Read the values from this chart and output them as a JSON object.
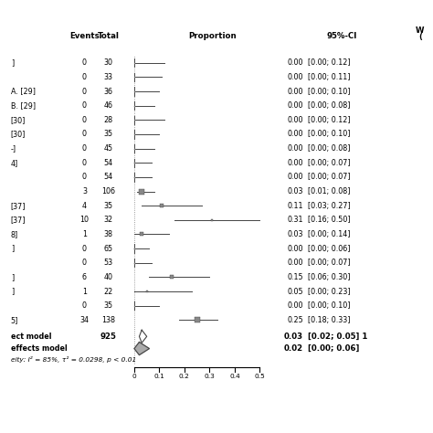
{
  "studies": [
    {
      "label": "]",
      "events": 0,
      "total": 30,
      "prop": 0.0,
      "ci_lo": 0.0,
      "ci_hi": 0.12
    },
    {
      "label": "",
      "events": 0,
      "total": 33,
      "prop": 0.0,
      "ci_lo": 0.0,
      "ci_hi": 0.11
    },
    {
      "label": "A. [29]",
      "events": 0,
      "total": 36,
      "prop": 0.0,
      "ci_lo": 0.0,
      "ci_hi": 0.1
    },
    {
      "label": "B. [29]",
      "events": 0,
      "total": 46,
      "prop": 0.0,
      "ci_lo": 0.0,
      "ci_hi": 0.08
    },
    {
      "label": "[30]",
      "events": 0,
      "total": 28,
      "prop": 0.0,
      "ci_lo": 0.0,
      "ci_hi": 0.12
    },
    {
      "label": "[30]",
      "events": 0,
      "total": 35,
      "prop": 0.0,
      "ci_lo": 0.0,
      "ci_hi": 0.1
    },
    {
      "label": "-]",
      "events": 0,
      "total": 45,
      "prop": 0.0,
      "ci_lo": 0.0,
      "ci_hi": 0.08
    },
    {
      "label": "4]",
      "events": 0,
      "total": 54,
      "prop": 0.0,
      "ci_lo": 0.0,
      "ci_hi": 0.07
    },
    {
      "label": "",
      "events": 0,
      "total": 54,
      "prop": 0.0,
      "ci_lo": 0.0,
      "ci_hi": 0.07
    },
    {
      "label": "",
      "events": 3,
      "total": 106,
      "prop": 0.03,
      "ci_lo": 0.01,
      "ci_hi": 0.08
    },
    {
      "label": "[37]",
      "events": 4,
      "total": 35,
      "prop": 0.11,
      "ci_lo": 0.03,
      "ci_hi": 0.27
    },
    {
      "label": "[37]",
      "events": 10,
      "total": 32,
      "prop": 0.31,
      "ci_lo": 0.16,
      "ci_hi": 0.5
    },
    {
      "label": "8]",
      "events": 1,
      "total": 38,
      "prop": 0.03,
      "ci_lo": 0.0,
      "ci_hi": 0.14
    },
    {
      "label": "]",
      "events": 0,
      "total": 65,
      "prop": 0.0,
      "ci_lo": 0.0,
      "ci_hi": 0.06
    },
    {
      "label": "",
      "events": 0,
      "total": 53,
      "prop": 0.0,
      "ci_lo": 0.0,
      "ci_hi": 0.07
    },
    {
      "label": "]",
      "events": 6,
      "total": 40,
      "prop": 0.15,
      "ci_lo": 0.06,
      "ci_hi": 0.3
    },
    {
      "label": "]",
      "events": 1,
      "total": 22,
      "prop": 0.05,
      "ci_lo": 0.0,
      "ci_hi": 0.23
    },
    {
      "label": "",
      "events": 0,
      "total": 35,
      "prop": 0.0,
      "ci_lo": 0.0,
      "ci_hi": 0.1
    },
    {
      "label": "5]",
      "events": 34,
      "total": 138,
      "prop": 0.25,
      "ci_lo": 0.18,
      "ci_hi": 0.33
    }
  ],
  "fixed_effect": {
    "total": 925,
    "prop": 0.03,
    "ci_lo": 0.02,
    "ci_hi": 0.05
  },
  "random_effect": {
    "prop": 0.02,
    "ci_lo": 0.0,
    "ci_hi": 0.06
  },
  "heterogeneity": "eity: I² = 85%, τ² = 0.0298, p < 0.01",
  "xticks": [
    0,
    0.1,
    0.2,
    0.3,
    0.4,
    0.5
  ],
  "bg_color": "#ffffff",
  "text_color": "#000000",
  "ci_color": "#444444",
  "marker_color": "#888888",
  "diamond_color": "#aaaaaa",
  "fs": 5.8,
  "fs_bold": 6.2
}
